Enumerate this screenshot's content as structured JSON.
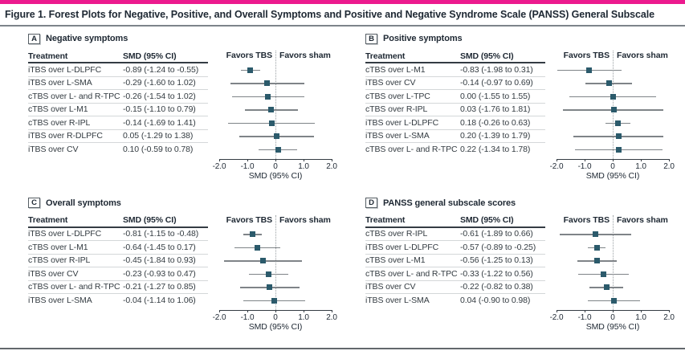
{
  "figure": {
    "title": "Figure 1. Forest Plots for Negative, Positive, and Overall Symptoms and Positive and Negative Syndrome Scale (PANSS) General Subscale"
  },
  "colors": {
    "accent_bar": "#EC1A8E",
    "marker": "#2B5A6B",
    "ci_line": "#7F8488",
    "heading_text": "#1E2833"
  },
  "chart_data": [
    {
      "type": "forest",
      "panel": "A",
      "title": "Negative symptoms",
      "col_headers": [
        "Treatment",
        "SMD (95% CI)"
      ],
      "favors_left": "Favors TBS",
      "favors_right": "Favors sham",
      "xlabel": "SMD (95% CI)",
      "xlim": [
        -2.0,
        2.0
      ],
      "xticks": [
        "-2.0",
        "-1.0",
        "0",
        "1.0",
        "2.0"
      ],
      "rows": [
        {
          "label": "iTBS over L-DLPFC",
          "ci_text": "-0.89 (-1.24 to -0.55)",
          "smd": -0.89,
          "lo": -1.24,
          "hi": -0.55
        },
        {
          "label": "iTBS over L-SMA",
          "ci_text": "-0.29 (-1.60 to 1.02)",
          "smd": -0.29,
          "lo": -1.6,
          "hi": 1.02
        },
        {
          "label": "cTBS over L- and R-TPC",
          "ci_text": "-0.26 (-1.54 to 1.02)",
          "smd": -0.26,
          "lo": -1.54,
          "hi": 1.02
        },
        {
          "label": "cTBS over L-M1",
          "ci_text": "-0.15 (-1.10 to 0.79)",
          "smd": -0.15,
          "lo": -1.1,
          "hi": 0.79
        },
        {
          "label": "cTBS over R-IPL",
          "ci_text": "-0.14 (-1.69 to 1.41)",
          "smd": -0.14,
          "lo": -1.69,
          "hi": 1.41
        },
        {
          "label": "iTBS over R-DLPFC",
          "ci_text": "0.05 (-1.29 to 1.38)",
          "smd": 0.05,
          "lo": -1.29,
          "hi": 1.38
        },
        {
          "label": "iTBS over CV",
          "ci_text": "0.10 (-0.59 to 0.78)",
          "smd": 0.1,
          "lo": -0.59,
          "hi": 0.78
        }
      ]
    },
    {
      "type": "forest",
      "panel": "B",
      "title": "Positive symptoms",
      "col_headers": [
        "Treatment",
        "SMD (95% CI)"
      ],
      "favors_left": "Favors TBS",
      "favors_right": "Favors sham",
      "xlabel": "SMD (95% CI)",
      "xlim": [
        -2.0,
        2.0
      ],
      "xticks": [
        "-2.0",
        "-1.0",
        "0",
        "1.0",
        "2.0"
      ],
      "rows": [
        {
          "label": "cTBS over L-M1",
          "ci_text": "-0.83 (-1.98 to 0.31)",
          "smd": -0.83,
          "lo": -1.98,
          "hi": 0.31
        },
        {
          "label": "iTBS over CV",
          "ci_text": "-0.14 (-0.97 to 0.69)",
          "smd": -0.14,
          "lo": -0.97,
          "hi": 0.69
        },
        {
          "label": "cTBS over L-TPC",
          "ci_text": "0.00 (-1.55 to 1.55)",
          "smd": 0.0,
          "lo": -1.55,
          "hi": 1.55
        },
        {
          "label": "cTBS over R-IPL",
          "ci_text": "0.03 (-1.76 to 1.81)",
          "smd": 0.03,
          "lo": -1.76,
          "hi": 1.81
        },
        {
          "label": "iTBS over L-DLPFC",
          "ci_text": "0.18 (-0.26 to 0.63)",
          "smd": 0.18,
          "lo": -0.26,
          "hi": 0.63
        },
        {
          "label": "iTBS over L-SMA",
          "ci_text": "0.20 (-1.39 to 1.79)",
          "smd": 0.2,
          "lo": -1.39,
          "hi": 1.79
        },
        {
          "label": "cTBS over L- and R-TPC",
          "ci_text": "0.22 (-1.34 to 1.78)",
          "smd": 0.22,
          "lo": -1.34,
          "hi": 1.78
        }
      ]
    },
    {
      "type": "forest",
      "panel": "C",
      "title": "Overall symptoms",
      "col_headers": [
        "Treatment",
        "SMD (95% CI)"
      ],
      "favors_left": "Favors TBS",
      "favors_right": "Favors sham",
      "xlabel": "SMD (95% CI)",
      "xlim": [
        -2.0,
        2.0
      ],
      "xticks": [
        "-2.0",
        "-1.0",
        "0",
        "1.0",
        "2.0"
      ],
      "rows": [
        {
          "label": "iTBS over L-DLPFC",
          "ci_text": "-0.81 (-1.15 to -0.48)",
          "smd": -0.81,
          "lo": -1.15,
          "hi": -0.48
        },
        {
          "label": "cTBS over L-M1",
          "ci_text": "-0.64 (-1.45 to 0.17)",
          "smd": -0.64,
          "lo": -1.45,
          "hi": 0.17
        },
        {
          "label": "cTBS over R-IPL",
          "ci_text": "-0.45 (-1.84 to 0.93)",
          "smd": -0.45,
          "lo": -1.84,
          "hi": 0.93
        },
        {
          "label": "iTBS over CV",
          "ci_text": "-0.23 (-0.93 to 0.47)",
          "smd": -0.23,
          "lo": -0.93,
          "hi": 0.47
        },
        {
          "label": "cTBS over L- and R-TPC",
          "ci_text": "-0.21 (-1.27 to 0.85)",
          "smd": -0.21,
          "lo": -1.27,
          "hi": 0.85
        },
        {
          "label": "iTBS over L-SMA",
          "ci_text": "-0.04 (-1.14 to 1.06)",
          "smd": -0.04,
          "lo": -1.14,
          "hi": 1.06
        }
      ]
    },
    {
      "type": "forest",
      "panel": "D",
      "title": "PANSS general subscale scores",
      "col_headers": [
        "Treatment",
        "SMD (95% CI)"
      ],
      "favors_left": "Favors TBS",
      "favors_right": "Favors sham",
      "xlabel": "SMD (95% CI)",
      "xlim": [
        -2.0,
        2.0
      ],
      "xticks": [
        "-2.0",
        "-1.0",
        "0",
        "1.0",
        "2.0"
      ],
      "rows": [
        {
          "label": "cTBS over R-IPL",
          "ci_text": "-0.61 (-1.89 to 0.66)",
          "smd": -0.61,
          "lo": -1.89,
          "hi": 0.66
        },
        {
          "label": "iTBS over L-DLPFC",
          "ci_text": "-0.57 (-0.89 to -0.25)",
          "smd": -0.57,
          "lo": -0.89,
          "hi": -0.25
        },
        {
          "label": "cTBS over L-M1",
          "ci_text": "-0.56 (-1.25 to 0.13)",
          "smd": -0.56,
          "lo": -1.25,
          "hi": 0.13
        },
        {
          "label": "cTBS over L- and R-TPC",
          "ci_text": "-0.33 (-1.22 to 0.56)",
          "smd": -0.33,
          "lo": -1.22,
          "hi": 0.56
        },
        {
          "label": "iTBS over CV",
          "ci_text": "-0.22 (-0.82 to 0.38)",
          "smd": -0.22,
          "lo": -0.82,
          "hi": 0.38
        },
        {
          "label": "iTBS over L-SMA",
          "ci_text": "0.04 (-0.90 to 0.98)",
          "smd": 0.04,
          "lo": -0.9,
          "hi": 0.98
        }
      ]
    }
  ]
}
